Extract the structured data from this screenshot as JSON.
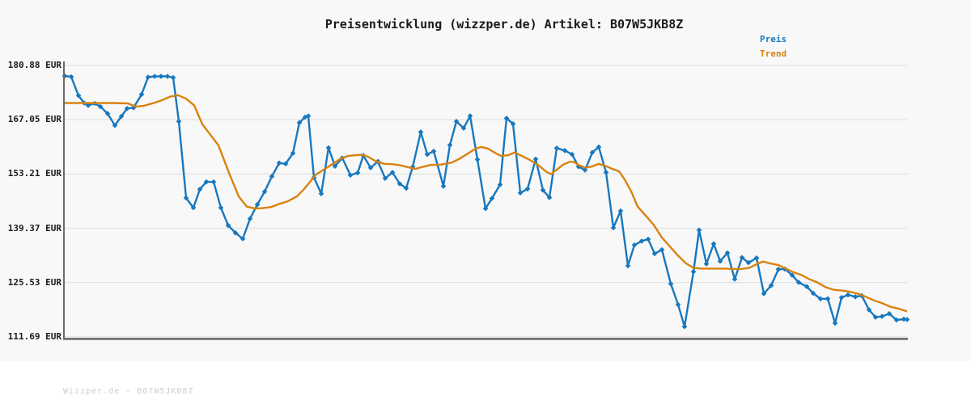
{
  "title": "Preisentwicklung (wizzper.de) Artikel: B07W5JKB8Z",
  "legend": {
    "preis_label": "Preis",
    "trend_label": "Trend"
  },
  "footer": "Wizzper.de - B07W5JKB8Z",
  "colors": {
    "preis": "#1878be",
    "trend": "#d9820e",
    "grid": "#e4e4e4",
    "axis": "#6a6a6a",
    "canvas_bg": "#f8f8f8",
    "title_text": "#1a1a1a",
    "footer_text": "#cdcdcd"
  },
  "y_axis": {
    "tick_labels": [
      "180.88 EUR",
      "167.05 EUR",
      "153.21 EUR",
      "139.37 EUR",
      "125.53 EUR",
      "111.69 EUR"
    ],
    "tick_values": [
      180.88,
      167.05,
      153.21,
      139.37,
      125.53,
      111.69
    ],
    "unit": "EUR"
  },
  "chart_data": {
    "type": "line",
    "title": "Preisentwicklung (wizzper.de) Artikel: B07W5JKB8Z",
    "xlabel": "",
    "ylabel": "EUR",
    "ylim": [
      111.69,
      180.88
    ],
    "grid": "horizontal",
    "legend_position": "top-right",
    "series": [
      {
        "name": "Preis",
        "marker": "diamond",
        "points": [
          [
            80,
            178.2
          ],
          [
            88,
            178.0
          ],
          [
            97,
            173.2
          ],
          [
            104,
            171.3
          ],
          [
            109,
            170.7
          ],
          [
            117,
            171.2
          ],
          [
            124,
            170.4
          ],
          [
            133,
            168.6
          ],
          [
            142,
            165.6
          ],
          [
            150,
            167.9
          ],
          [
            157,
            169.9
          ],
          [
            165,
            170.1
          ],
          [
            175,
            173.5
          ],
          [
            183,
            177.9
          ],
          [
            191,
            178.1
          ],
          [
            199,
            178.1
          ],
          [
            207,
            178.1
          ],
          [
            214,
            177.8
          ],
          [
            221,
            166.6
          ],
          [
            230,
            147.1
          ],
          [
            239,
            144.6
          ],
          [
            247,
            149.3
          ],
          [
            255,
            151.2
          ],
          [
            264,
            151.2
          ],
          [
            273,
            144.6
          ],
          [
            282,
            140.1
          ],
          [
            291,
            138.2
          ],
          [
            300,
            136.7
          ],
          [
            309,
            141.8
          ],
          [
            318,
            145.4
          ],
          [
            327,
            148.7
          ],
          [
            336,
            152.6
          ],
          [
            345,
            156.0
          ],
          [
            353,
            155.8
          ],
          [
            362,
            158.5
          ],
          [
            370,
            166.3
          ],
          [
            377,
            167.7
          ],
          [
            381,
            168.0
          ],
          [
            388,
            152.3
          ],
          [
            397,
            148.2
          ],
          [
            406,
            159.9
          ],
          [
            414,
            155.2
          ],
          [
            423,
            157.3
          ],
          [
            433,
            152.9
          ],
          [
            442,
            153.5
          ],
          [
            449,
            157.9
          ],
          [
            458,
            154.8
          ],
          [
            467,
            156.4
          ],
          [
            476,
            152.1
          ],
          [
            485,
            153.6
          ],
          [
            494,
            150.7
          ],
          [
            502,
            149.6
          ],
          [
            510,
            155.0
          ],
          [
            520,
            163.9
          ],
          [
            528,
            158.2
          ],
          [
            536,
            159.0
          ],
          [
            548,
            150.1
          ],
          [
            556,
            160.6
          ],
          [
            564,
            166.6
          ],
          [
            573,
            164.9
          ],
          [
            581,
            168.0
          ],
          [
            590,
            156.9
          ],
          [
            600,
            144.4
          ],
          [
            608,
            147.0
          ],
          [
            618,
            150.5
          ],
          [
            626,
            167.4
          ],
          [
            634,
            166.0
          ],
          [
            643,
            148.4
          ],
          [
            652,
            149.4
          ],
          [
            662,
            157.0
          ],
          [
            671,
            149.1
          ],
          [
            679,
            147.2
          ],
          [
            688,
            159.8
          ],
          [
            698,
            159.2
          ],
          [
            707,
            158.2
          ],
          [
            715,
            155.1
          ],
          [
            723,
            154.2
          ],
          [
            732,
            158.7
          ],
          [
            740,
            160.1
          ],
          [
            749,
            153.6
          ],
          [
            758,
            139.5
          ],
          [
            767,
            143.8
          ],
          [
            776,
            129.8
          ],
          [
            784,
            135.1
          ],
          [
            793,
            136.1
          ],
          [
            801,
            136.6
          ],
          [
            809,
            132.9
          ],
          [
            818,
            133.9
          ],
          [
            829,
            125.2
          ],
          [
            838,
            119.9
          ],
          [
            846,
            114.3
          ],
          [
            857,
            128.3
          ],
          [
            864,
            138.9
          ],
          [
            873,
            130.3
          ],
          [
            882,
            135.4
          ],
          [
            890,
            131.0
          ],
          [
            899,
            133.1
          ],
          [
            908,
            126.4
          ],
          [
            917,
            131.9
          ],
          [
            925,
            130.6
          ],
          [
            935,
            131.8
          ],
          [
            944,
            122.7
          ],
          [
            953,
            124.8
          ],
          [
            962,
            128.9
          ],
          [
            970,
            129.0
          ],
          [
            979,
            127.4
          ],
          [
            987,
            125.6
          ],
          [
            997,
            124.5
          ],
          [
            1005,
            122.8
          ],
          [
            1014,
            121.4
          ],
          [
            1023,
            121.4
          ],
          [
            1032,
            115.2
          ],
          [
            1040,
            121.7
          ],
          [
            1048,
            122.4
          ],
          [
            1057,
            121.9
          ],
          [
            1065,
            122.2
          ],
          [
            1074,
            118.6
          ],
          [
            1082,
            116.7
          ],
          [
            1090,
            116.9
          ],
          [
            1099,
            117.6
          ],
          [
            1108,
            116.0
          ],
          [
            1117,
            116.2
          ],
          [
            1121,
            116.1
          ]
        ]
      },
      {
        "name": "Trend",
        "marker": "none",
        "points": [
          [
            80,
            171.3
          ],
          [
            100,
            171.3
          ],
          [
            120,
            171.3
          ],
          [
            140,
            171.3
          ],
          [
            158,
            171.2
          ],
          [
            168,
            170.4
          ],
          [
            178,
            170.6
          ],
          [
            190,
            171.3
          ],
          [
            200,
            172.0
          ],
          [
            210,
            172.9
          ],
          [
            220,
            173.3
          ],
          [
            230,
            172.4
          ],
          [
            240,
            170.7
          ],
          [
            250,
            165.9
          ],
          [
            260,
            163.2
          ],
          [
            270,
            160.5
          ],
          [
            283,
            153.5
          ],
          [
            295,
            147.5
          ],
          [
            305,
            144.9
          ],
          [
            315,
            144.4
          ],
          [
            325,
            144.5
          ],
          [
            335,
            144.8
          ],
          [
            347,
            145.7
          ],
          [
            355,
            146.2
          ],
          [
            367,
            147.5
          ],
          [
            375,
            149.2
          ],
          [
            382,
            150.9
          ],
          [
            390,
            153.0
          ],
          [
            400,
            154.3
          ],
          [
            410,
            155.6
          ],
          [
            420,
            157.0
          ],
          [
            430,
            157.8
          ],
          [
            440,
            158.0
          ],
          [
            447,
            158.1
          ],
          [
            455,
            157.6
          ],
          [
            465,
            156.4
          ],
          [
            475,
            155.8
          ],
          [
            485,
            155.7
          ],
          [
            495,
            155.4
          ],
          [
            505,
            154.9
          ],
          [
            513,
            154.5
          ],
          [
            522,
            155.0
          ],
          [
            532,
            155.5
          ],
          [
            545,
            155.6
          ],
          [
            558,
            156.1
          ],
          [
            568,
            157.1
          ],
          [
            578,
            158.4
          ],
          [
            588,
            159.7
          ],
          [
            595,
            160.1
          ],
          [
            603,
            159.7
          ],
          [
            611,
            158.7
          ],
          [
            619,
            157.8
          ],
          [
            628,
            158.0
          ],
          [
            636,
            158.7
          ],
          [
            644,
            157.9
          ],
          [
            652,
            157.1
          ],
          [
            660,
            156.2
          ],
          [
            668,
            155.0
          ],
          [
            675,
            153.8
          ],
          [
            681,
            153.2
          ],
          [
            688,
            154.3
          ],
          [
            696,
            155.6
          ],
          [
            704,
            156.3
          ],
          [
            709,
            156.3
          ],
          [
            716,
            155.4
          ],
          [
            724,
            154.8
          ],
          [
            731,
            155.1
          ],
          [
            740,
            155.8
          ],
          [
            748,
            155.3
          ],
          [
            757,
            154.5
          ],
          [
            765,
            153.9
          ],
          [
            772,
            151.8
          ],
          [
            780,
            148.8
          ],
          [
            788,
            144.9
          ],
          [
            798,
            142.6
          ],
          [
            808,
            140.2
          ],
          [
            818,
            137.0
          ],
          [
            828,
            134.7
          ],
          [
            838,
            132.4
          ],
          [
            848,
            130.4
          ],
          [
            857,
            129.3
          ],
          [
            866,
            129.1
          ],
          [
            876,
            129.1
          ],
          [
            886,
            129.1
          ],
          [
            896,
            129.1
          ],
          [
            906,
            129.0
          ],
          [
            916,
            129.0
          ],
          [
            926,
            129.3
          ],
          [
            936,
            130.3
          ],
          [
            943,
            130.9
          ],
          [
            952,
            130.4
          ],
          [
            962,
            130.0
          ],
          [
            970,
            129.2
          ],
          [
            980,
            128.2
          ],
          [
            990,
            127.5
          ],
          [
            1000,
            126.4
          ],
          [
            1010,
            125.6
          ],
          [
            1020,
            124.4
          ],
          [
            1030,
            123.7
          ],
          [
            1040,
            123.5
          ],
          [
            1050,
            123.2
          ],
          [
            1060,
            122.7
          ],
          [
            1070,
            121.9
          ],
          [
            1080,
            121.0
          ],
          [
            1090,
            120.3
          ],
          [
            1100,
            119.4
          ],
          [
            1110,
            118.9
          ],
          [
            1121,
            118.2
          ]
        ]
      }
    ]
  }
}
